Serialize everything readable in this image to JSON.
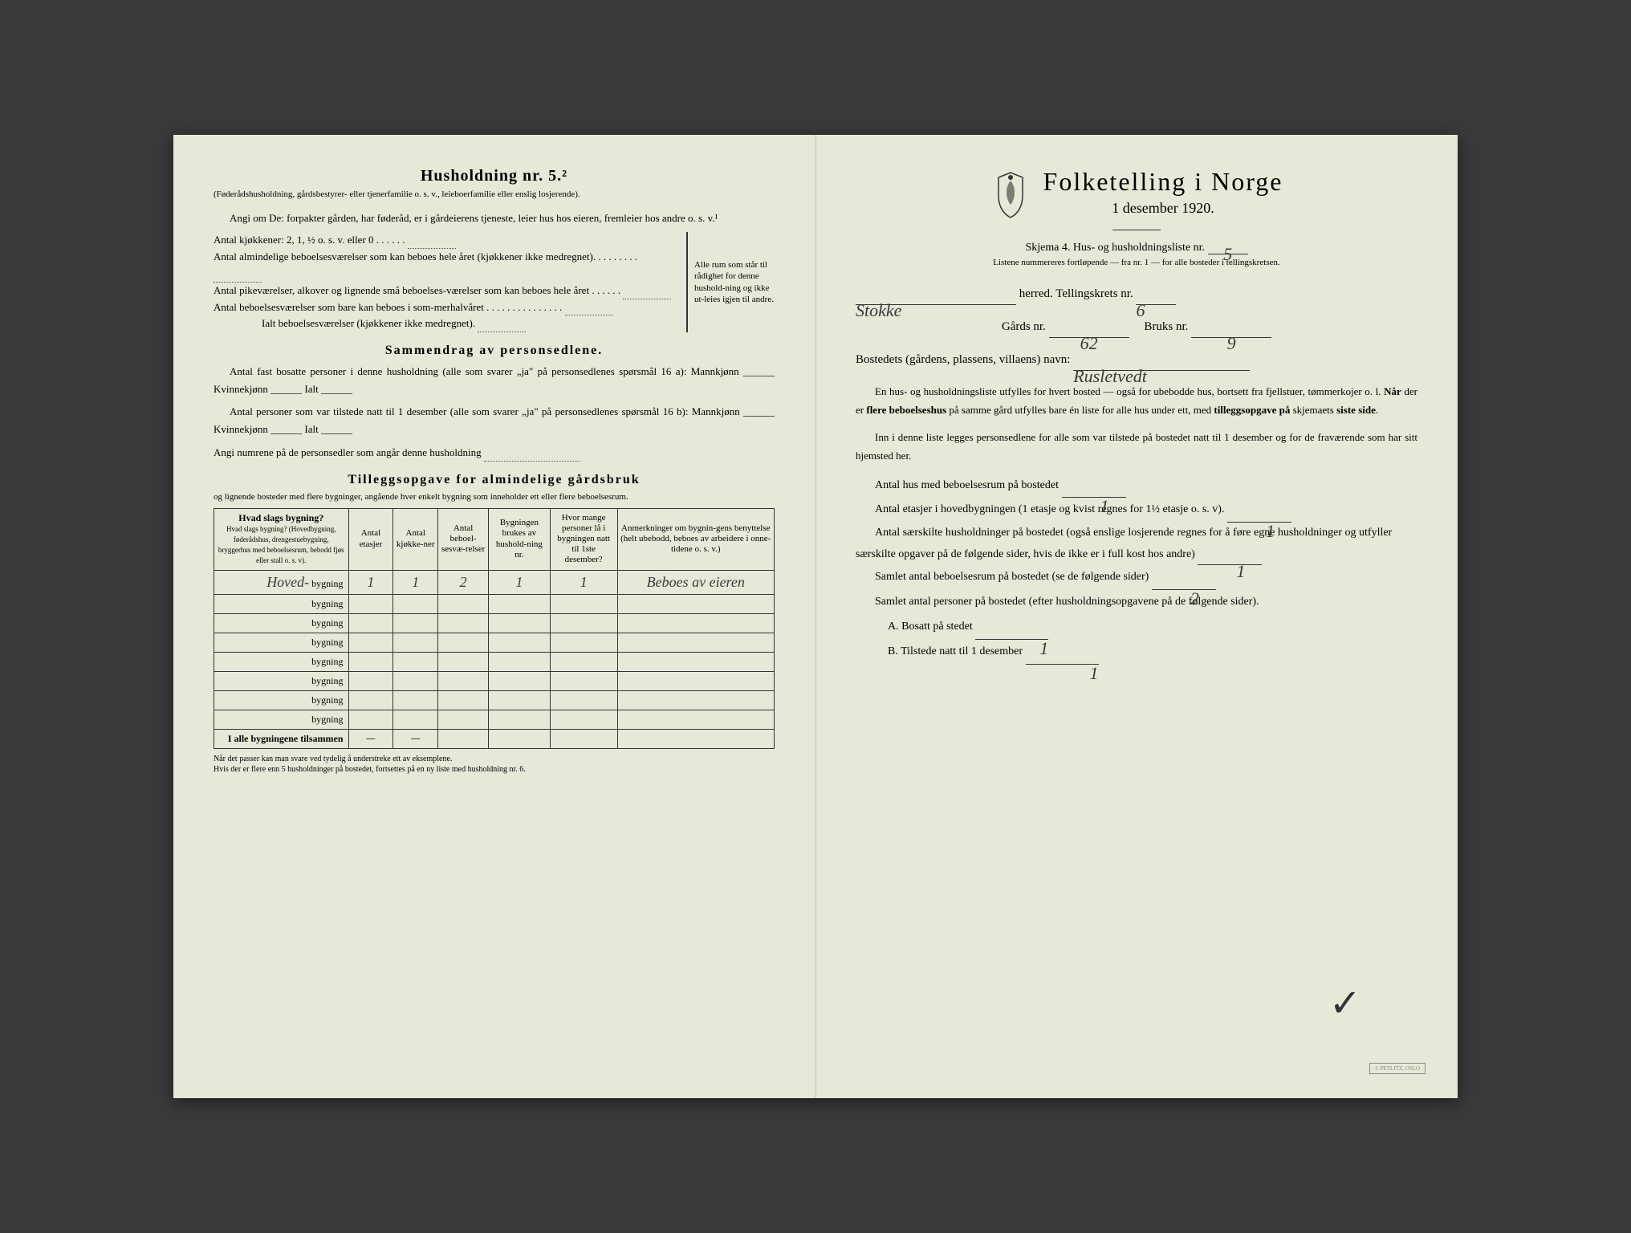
{
  "left": {
    "household_heading": "Husholdning nr. 5.²",
    "household_note": "(Føderådshusholdning, gårdsbestyrer- eller tjenerfamilie o. s. v., leieboerfamilie eller enslig losjerende).",
    "angi_line": "Angi om De: forpakter gården, har føderåd, er i gårdeierens tjeneste, leier hus hos eieren, fremleier hos andre o. s. v.¹",
    "kitchens_line": "Antal kjøkkener: 2, 1, ½ o. s. v. eller 0",
    "rooms_lines": [
      "Antal almindelige beboelsesværelser som kan beboes hele året (kjøkkener ikke medregnet).",
      "Antal pikeværelser, alkover og lignende små beboelses-værelser som kan beboes hele året",
      "Antal beboelsesværelser som bare kan beboes i som-merhalvåret"
    ],
    "rooms_total": "Ialt beboelsesværelser (kjøkkener ikke medregnet).",
    "brace_note": "Alle rum som står til rådighet for denne hushold-ning og ikke ut-leies igjen til andre.",
    "section2_title": "Sammendrag av personsedlene.",
    "s2_line1": "Antal fast bosatte personer i denne husholdning (alle som svarer „ja\" på personsedlenes spørsmål 16 a): Mannkjønn ______ Kvinnekjønn ______ Ialt ______",
    "s2_line2": "Antal personer som var tilstede natt til 1 desember (alle som svarer „ja\" på personsedlenes spørsmål 16 b): Mannkjønn ______ Kvinnekjønn ______ Ialt ______",
    "s2_line3": "Angi numrene på de personsedler som angår denne husholdning",
    "section3_title": "Tilleggsopgave for almindelige gårdsbruk",
    "s3_sub": "og lignende bosteder med flere bygninger, angående hver enkelt bygning som inneholder ett eller flere beboelsesrum.",
    "table": {
      "headers": [
        "Hvad slags bygning?\n(Hovedbygning, føderådshus, drengestuebygning, bryggerhus med beboelsesrum, bebodd fjøs eller stall o. s. v).",
        "Antal etasjer",
        "Antal kjøkke-ner",
        "Antal beboel-sesvæ-relser",
        "Bygningen brukes av hushold-ning nr.",
        "Hvor mange personer lå i bygningen natt til 1ste desember?",
        "Anmerkninger om bygnin-gens benyttelse (helt ubebodd, beboes av arbeidere i onne-tidene o. s. v.)"
      ],
      "row_suffix": "bygning",
      "rows": [
        {
          "name": "Hoved-",
          "vals": [
            "1",
            "1",
            "2",
            "1",
            "1",
            "Beboes av eieren"
          ]
        },
        {
          "name": "",
          "vals": [
            "",
            "",
            "",
            "",
            "",
            ""
          ]
        },
        {
          "name": "",
          "vals": [
            "",
            "",
            "",
            "",
            "",
            ""
          ]
        },
        {
          "name": "",
          "vals": [
            "",
            "",
            "",
            "",
            "",
            ""
          ]
        },
        {
          "name": "",
          "vals": [
            "",
            "",
            "",
            "",
            "",
            ""
          ]
        },
        {
          "name": "",
          "vals": [
            "",
            "",
            "",
            "",
            "",
            ""
          ]
        },
        {
          "name": "",
          "vals": [
            "",
            "",
            "",
            "",
            "",
            ""
          ]
        },
        {
          "name": "",
          "vals": [
            "",
            "",
            "",
            "",
            "",
            ""
          ]
        }
      ],
      "total_label": "I alle bygningene tilsammen",
      "total_vals": [
        "—",
        "—",
        "",
        "",
        "",
        ""
      ]
    },
    "footnote": "Når det passer kan man svare ved tydelig å understreke ett av eksemplene.\nHvis der er flere enn 5 husholdninger på bostedet, fortsettes på en ny liste med husholdning nr. 6."
  },
  "right": {
    "title": "Folketelling i Norge",
    "date": "1 desember 1920.",
    "skjema": "Skjema 4.  Hus- og husholdningsliste nr.",
    "skjema_nr": "5",
    "list_note": "Listene nummereres fortløpende — fra nr. 1 — for alle bosteder i tellingskretsen.",
    "herred_value": "Stokke",
    "herred_label": "herred.  Tellingskrets nr.",
    "krets_nr": "6",
    "gards_label": "Gårds nr.",
    "gards_nr": "62",
    "bruks_label": "Bruks nr.",
    "bruks_nr": "9",
    "bosted_label": "Bostedets (gårdens, plassens, villaens) navn:",
    "bosted_value": "Rusletvedt",
    "para1": "En hus- og husholdningsliste utfylles for hvert bosted — også for ubebodde hus, bortsett fra fjellstuer, tømmerkojer o. l. Når der er flere beboelseshus på samme gård utfylles bare én liste for alle hus under ett, med tilleggsopgave på skjemaets siste side.",
    "para2": "Inn i denne liste legges personsedlene for alle som var tilstede på bostedet natt til 1 desember og for de fraværende som har sitt hjemsted her.",
    "q1_label": "Antal hus med beboelsesrum på bostedet",
    "q1_val": "1",
    "q2_label_a": "Antal etasjer i hovedbygningen (1 etasje og kvist regnes for 1½ etasje o. s. v).",
    "q2_val": "1",
    "q3_label": "Antal særskilte husholdninger på bostedet (også enslige losjerende regnes for å føre egne husholdninger og utfyller særskilte opgaver på de følgende sider, hvis de ikke er i full kost hos andre)",
    "q3_val": "1",
    "q4_label": "Samlet antal beboelsesrum på bostedet (se de følgende sider)",
    "q4_val": "2",
    "q5_label": "Samlet antal personer på bostedet (efter husholdningsopgavene på de følgende sider).",
    "qA_label": "A.  Bosatt på stedet",
    "qA_val": "1",
    "qB_label": "B.  Tilstede natt til 1 desember",
    "qB_val": "1",
    "stamp": "J. PETLITZ, OSLO"
  },
  "colors": {
    "paper": "#e8e8d8",
    "ink": "#2a2a2a",
    "hand": "#3a3a3a"
  }
}
